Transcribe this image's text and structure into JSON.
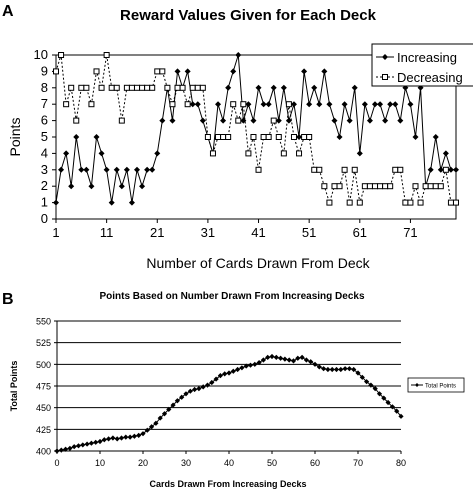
{
  "panels": [
    {
      "label": "A",
      "chart_data": {
        "type": "line",
        "title": "Reward Values Given for Each Deck",
        "xlabel": "Number of Cards Drawn From Deck",
        "ylabel": "Points",
        "xlim": [
          1,
          80
        ],
        "ylim": [
          0,
          10
        ],
        "x_ticks": [
          1,
          11,
          21,
          31,
          41,
          51,
          61,
          71
        ],
        "y_ticks": [
          0,
          1,
          2,
          3,
          4,
          5,
          6,
          7,
          8,
          9,
          10
        ],
        "grid": false,
        "legend_position": "top-right",
        "x": [
          1,
          2,
          3,
          4,
          5,
          6,
          7,
          8,
          9,
          10,
          11,
          12,
          13,
          14,
          15,
          16,
          17,
          18,
          19,
          20,
          21,
          22,
          23,
          24,
          25,
          26,
          27,
          28,
          29,
          30,
          31,
          32,
          33,
          34,
          35,
          36,
          37,
          38,
          39,
          40,
          41,
          42,
          43,
          44,
          45,
          46,
          47,
          48,
          49,
          50,
          51,
          52,
          53,
          54,
          55,
          56,
          57,
          58,
          59,
          60,
          61,
          62,
          63,
          64,
          65,
          66,
          67,
          68,
          69,
          70,
          71,
          72,
          73,
          74,
          75,
          76,
          77,
          78,
          79,
          80
        ],
        "series": [
          {
            "name": "Increasing",
            "style": "solid",
            "marker": "diamond",
            "color": "#000000",
            "values": [
              1,
              3,
              4,
              2,
              5,
              3,
              3,
              2,
              5,
              4,
              3,
              1,
              3,
              2,
              3,
              1,
              3,
              2,
              3,
              3,
              4,
              6,
              8,
              6,
              9,
              8,
              9,
              7,
              7,
              6,
              5,
              4,
              7,
              6,
              8,
              9,
              10,
              6,
              7,
              6,
              8,
              7,
              7,
              8,
              6,
              8,
              6,
              7,
              5,
              9,
              7,
              8,
              7,
              9,
              7,
              6,
              5,
              7,
              6,
              8,
              4,
              7,
              6,
              7,
              7,
              6,
              7,
              7,
              6,
              8,
              7,
              5,
              8,
              2,
              3,
              5,
              3,
              4,
              3,
              3
            ]
          },
          {
            "name": "Decreasing",
            "style": "dashed",
            "marker": "square",
            "color": "#000000",
            "values": [
              9,
              10,
              7,
              8,
              6,
              8,
              8,
              7,
              9,
              8,
              10,
              8,
              8,
              6,
              8,
              8,
              8,
              8,
              8,
              8,
              9,
              9,
              8,
              7,
              8,
              8,
              7,
              8,
              8,
              8,
              5,
              4,
              5,
              5,
              5,
              7,
              6,
              7,
              4,
              5,
              3,
              5,
              5,
              6,
              5,
              4,
              7,
              5,
              4,
              5,
              5,
              3,
              3,
              2,
              1,
              2,
              2,
              3,
              1,
              3,
              1,
              2,
              2,
              2,
              2,
              2,
              2,
              3,
              3,
              1,
              1,
              2,
              1,
              2,
              2,
              2,
              2,
              3,
              1,
              1
            ]
          }
        ]
      }
    },
    {
      "label": "B",
      "chart_data": {
        "type": "line",
        "title": "Points Based on Number Drawn From Increasing Decks",
        "xlabel": "Cards Drawn From Increasing Decks",
        "ylabel": "Total Points",
        "xlim": [
          0,
          80
        ],
        "ylim": [
          400,
          550
        ],
        "x_ticks": [
          0,
          10,
          20,
          30,
          40,
          50,
          60,
          70,
          80
        ],
        "y_ticks": [
          400,
          425,
          450,
          475,
          500,
          525,
          550
        ],
        "grid": true,
        "legend_position": "right",
        "series": [
          {
            "name": "Total Points",
            "marker": "diamond",
            "color": "#000000",
            "x": [
              0,
              1,
              2,
              3,
              4,
              5,
              6,
              7,
              8,
              9,
              10,
              11,
              12,
              13,
              14,
              15,
              16,
              17,
              18,
              19,
              20,
              21,
              22,
              23,
              24,
              25,
              26,
              27,
              28,
              29,
              30,
              31,
              32,
              33,
              34,
              35,
              36,
              37,
              38,
              39,
              40,
              41,
              42,
              43,
              44,
              45,
              46,
              47,
              48,
              49,
              50,
              51,
              52,
              53,
              54,
              55,
              56,
              57,
              58,
              59,
              60,
              61,
              62,
              63,
              64,
              65,
              66,
              67,
              68,
              69,
              70,
              71,
              72,
              73,
              74,
              75,
              76,
              77,
              78,
              79,
              80
            ],
            "values": [
              400,
              401,
              402,
              403,
              405,
              406,
              407,
              408,
              409,
              410,
              411,
              413,
              414,
              415,
              414,
              415,
              416,
              416,
              417,
              418,
              420,
              424,
              428,
              432,
              438,
              443,
              448,
              453,
              458,
              462,
              466,
              469,
              471,
              472,
              474,
              476,
              479,
              483,
              487,
              489,
              490,
              492,
              494,
              496,
              498,
              499,
              500,
              502,
              505,
              508,
              509,
              508,
              507,
              506,
              505,
              504,
              507,
              508,
              505,
              503,
              500,
              497,
              495,
              494,
              494,
              494,
              494,
              495,
              495,
              494,
              490,
              485,
              480,
              476,
              472,
              466,
              461,
              456,
              451,
              446,
              440
            ]
          }
        ]
      }
    }
  ]
}
